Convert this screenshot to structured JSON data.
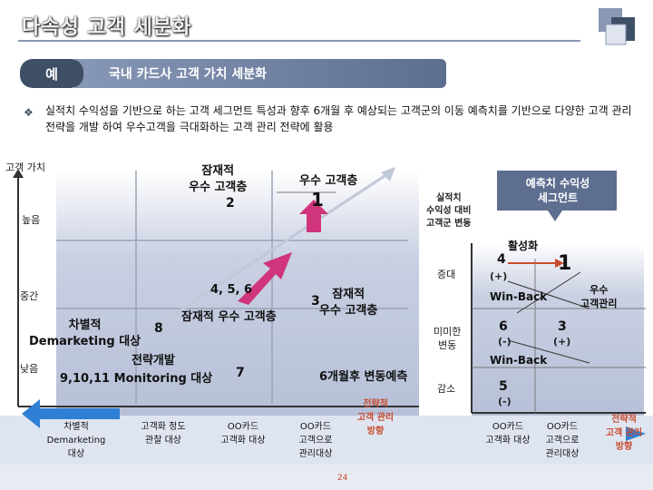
{
  "title": "다속성 고객 세분화",
  "header": {
    "badge": "예",
    "subtitle": "국내 카드사 고객 가치 세분화"
  },
  "description": "실적치 수익성을 기반으로 하는 고객 세그먼트 특성과 향후 6개월 후 예상되는 고객군의 이동 예측치를 기반으로 다양한 고객 관리 전략을 개발 하여 우수고객을 극대화하는 고객 관리 전략에 활용",
  "left_chart": {
    "y_axis_title": "고객 가치",
    "y_levels": [
      "높음",
      "중간",
      "낮음"
    ],
    "segments": {
      "potential_top": {
        "label": "잠재적\n우수 고객층",
        "number": "2"
      },
      "excellent": {
        "label": "우수 고객층",
        "number": "1"
      },
      "mid_potential": {
        "numbers": "4, 5, 6",
        "label": "잠재적 우수 고객층"
      },
      "mid_right": {
        "number": "3",
        "label": "잠재적\n우수 고객층"
      },
      "differential": {
        "label": "차별적\nDemarketing 대상"
      },
      "eight": {
        "number": "8",
        "label": "전략개발"
      },
      "monitoring": {
        "label": "9,10,11 Monitoring 대상"
      },
      "seven": {
        "number": "7"
      }
    },
    "forecast_label": "6개월후 변동예측",
    "bottom_labels": [
      "차별적\nDemarketing\n대상",
      "고객화 정도\n관찰 대상",
      "OO카드\n고객화 대상",
      "OO카드\n고객으로\n관리대상"
    ],
    "strategy_label": "전략적\n고객 관리\n방향"
  },
  "right_chart": {
    "y_axis_title": "실적치\n수익성 대비\n고객군 변동",
    "header_label": "예측치 수익성\n세그먼트",
    "levels": [
      "증대",
      "미미한\n변동",
      "감소"
    ],
    "activation": "활성화",
    "cells": {
      "c4": {
        "number": "4",
        "sign": "(+)"
      },
      "c1": {
        "number": "1"
      },
      "winback1": "Win-Back",
      "excellent_mgmt": "우수\n고객관리",
      "c6": {
        "number": "6",
        "sign": "(-)"
      },
      "c3": {
        "number": "3",
        "sign": "(+)"
      },
      "winback2": "Win-Back",
      "c5": {
        "number": "5",
        "sign": "(-)"
      }
    },
    "bottom_labels": [
      "OO카드\n고객화 대상",
      "OO카드\n고객으로\n관리대상"
    ],
    "strategy_label": "전략적\n고객 관리\n방향"
  },
  "page_number": "24",
  "colors": {
    "primary": "#3f4f66",
    "panel_gradient_top": "#b8c1d8",
    "panel_bottom": "#dfe5f0",
    "arrow_pink": "#d0347b",
    "arrow_blue": "#2f7fd4",
    "accent_red": "#c84c2e"
  }
}
